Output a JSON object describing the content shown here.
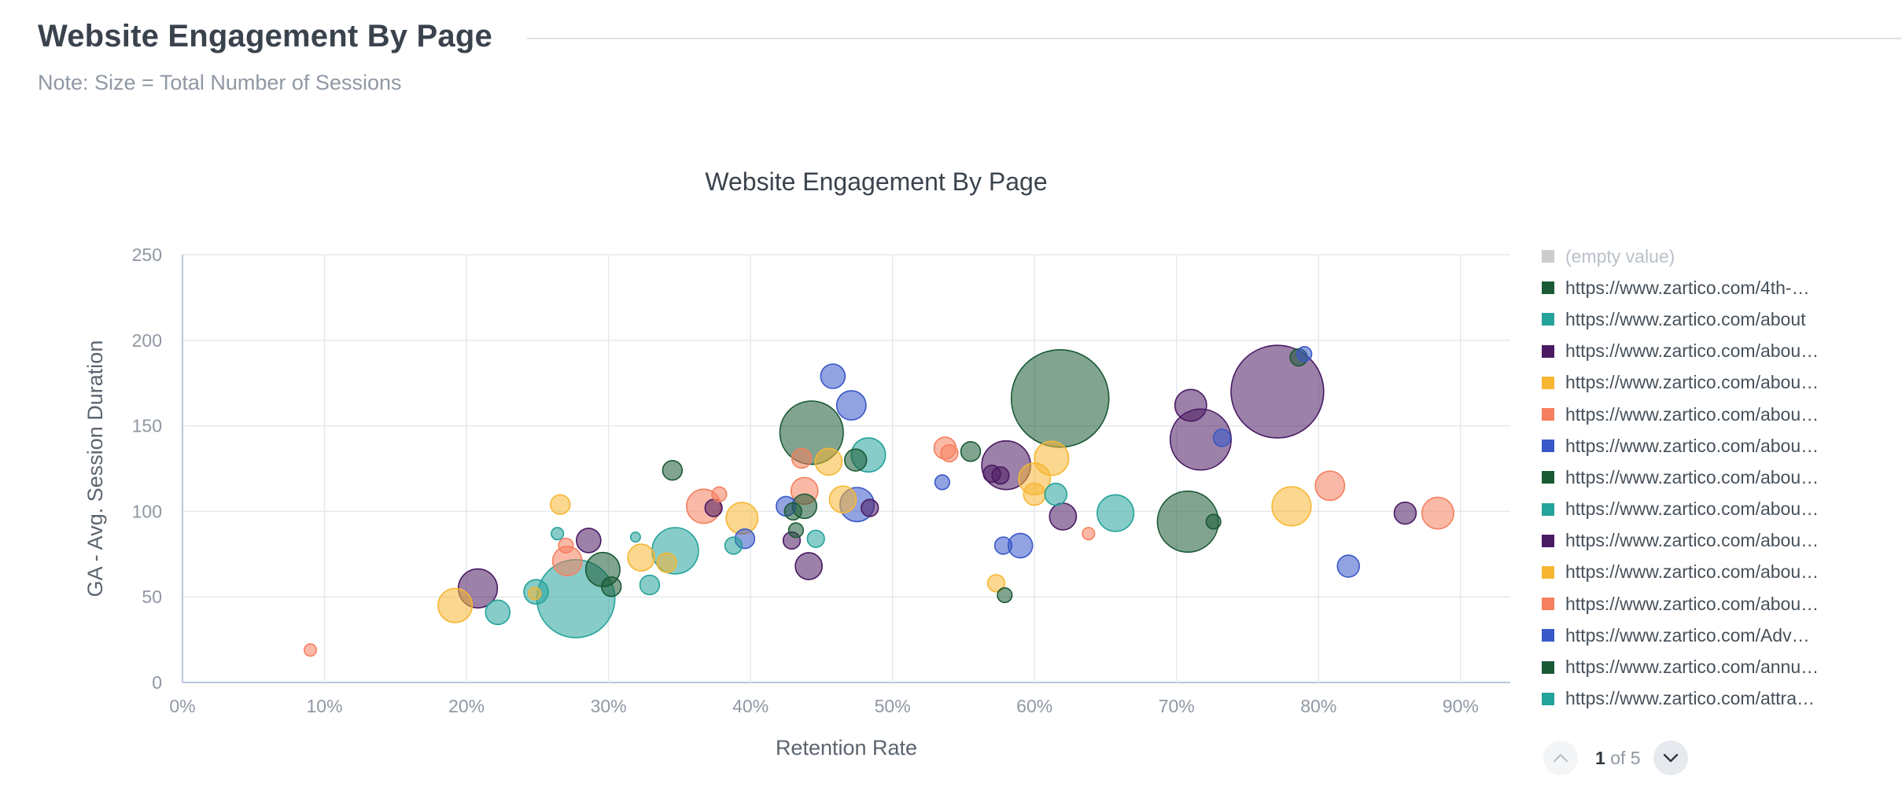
{
  "header": {
    "title": "Website Engagement By Page",
    "note": "Note: Size = Total Number of Sessions"
  },
  "legend": {
    "items": [
      {
        "label": "(empty value)",
        "color": "#cccccc"
      },
      {
        "label": "https://www.zartico.com/4th-…",
        "color": "#1a5a35"
      },
      {
        "label": "https://www.zartico.com/about",
        "color": "#24a39b"
      },
      {
        "label": "https://www.zartico.com/abou…",
        "color": "#4a1a63"
      },
      {
        "label": "https://www.zartico.com/abou…",
        "color": "#f7b733"
      },
      {
        "label": "https://www.zartico.com/abou…",
        "color": "#f57f5e"
      },
      {
        "label": "https://www.zartico.com/abou…",
        "color": "#3958c8"
      },
      {
        "label": "https://www.zartico.com/abou…",
        "color": "#1a5a35"
      },
      {
        "label": "https://www.zartico.com/abou…",
        "color": "#24a39b"
      },
      {
        "label": "https://www.zartico.com/abou…",
        "color": "#4a1a63"
      },
      {
        "label": "https://www.zartico.com/abou…",
        "color": "#f7b733"
      },
      {
        "label": "https://www.zartico.com/abou…",
        "color": "#f57f5e"
      },
      {
        "label": "https://www.zartico.com/Adv…",
        "color": "#3958c8"
      },
      {
        "label": "https://www.zartico.com/annu…",
        "color": "#1a5a35"
      },
      {
        "label": "https://www.zartico.com/attra…",
        "color": "#24a39b"
      }
    ]
  },
  "pager": {
    "current": "1",
    "of_label": "of 5"
  },
  "icons": {
    "prev": "chevron-up-icon",
    "next": "chevron-down-icon"
  },
  "chart_data": {
    "type": "scatter",
    "title": "Website Engagement By Page",
    "xlabel": "Retention Rate",
    "ylabel": "GA - Avg. Session Duration",
    "xlim": [
      0,
      93.5
    ],
    "ylim": [
      0,
      250
    ],
    "xticks": [
      0,
      10,
      20,
      30,
      40,
      50,
      60,
      70,
      80,
      90
    ],
    "xtick_labels": [
      "0%",
      "10%",
      "20%",
      "30%",
      "40%",
      "50%",
      "60%",
      "70%",
      "80%",
      "90%"
    ],
    "yticks": [
      0,
      50,
      100,
      150,
      200,
      250
    ],
    "ytick_labels": [
      "0",
      "50",
      "100",
      "150",
      "200",
      "250"
    ],
    "grid": true,
    "legend_position": "right",
    "size_encoding": "Total Number of Sessions",
    "colors": {
      "green": "#1a5a35",
      "teal": "#24a39b",
      "purple": "#4a1a63",
      "yellow": "#f7b733",
      "orange": "#f57f5e",
      "blue": "#3958c8"
    },
    "points": [
      {
        "x": 9.0,
        "y": 19,
        "size": 5,
        "color": "orange"
      },
      {
        "x": 19.2,
        "y": 45,
        "size": 14,
        "color": "yellow"
      },
      {
        "x": 20.8,
        "y": 55,
        "size": 16,
        "color": "purple"
      },
      {
        "x": 22.2,
        "y": 41,
        "size": 10,
        "color": "teal"
      },
      {
        "x": 24.8,
        "y": 52,
        "size": 5,
        "color": "yellow"
      },
      {
        "x": 24.9,
        "y": 53,
        "size": 10,
        "color": "teal"
      },
      {
        "x": 26.4,
        "y": 87,
        "size": 5,
        "color": "teal"
      },
      {
        "x": 26.6,
        "y": 104,
        "size": 8,
        "color": "yellow"
      },
      {
        "x": 27.0,
        "y": 80,
        "size": 6,
        "color": "orange"
      },
      {
        "x": 27.1,
        "y": 71,
        "size": 12,
        "color": "orange"
      },
      {
        "x": 27.7,
        "y": 49,
        "size": 32,
        "color": "teal"
      },
      {
        "x": 28.6,
        "y": 83,
        "size": 10,
        "color": "purple"
      },
      {
        "x": 29.6,
        "y": 66,
        "size": 14,
        "color": "green"
      },
      {
        "x": 30.2,
        "y": 56,
        "size": 8,
        "color": "green"
      },
      {
        "x": 31.9,
        "y": 85,
        "size": 4,
        "color": "teal"
      },
      {
        "x": 32.3,
        "y": 73,
        "size": 11,
        "color": "yellow"
      },
      {
        "x": 32.9,
        "y": 57,
        "size": 8,
        "color": "teal"
      },
      {
        "x": 34.1,
        "y": 70,
        "size": 8,
        "color": "yellow"
      },
      {
        "x": 34.7,
        "y": 77,
        "size": 19,
        "color": "teal"
      },
      {
        "x": 34.5,
        "y": 124,
        "size": 8,
        "color": "green"
      },
      {
        "x": 36.7,
        "y": 103,
        "size": 14,
        "color": "orange"
      },
      {
        "x": 37.4,
        "y": 102,
        "size": 7,
        "color": "purple"
      },
      {
        "x": 37.8,
        "y": 110,
        "size": 6,
        "color": "orange"
      },
      {
        "x": 38.8,
        "y": 80,
        "size": 7,
        "color": "teal"
      },
      {
        "x": 39.4,
        "y": 96,
        "size": 13,
        "color": "yellow"
      },
      {
        "x": 39.6,
        "y": 84,
        "size": 8,
        "color": "blue"
      },
      {
        "x": 42.5,
        "y": 103,
        "size": 8,
        "color": "blue"
      },
      {
        "x": 42.9,
        "y": 83,
        "size": 7,
        "color": "purple"
      },
      {
        "x": 43.2,
        "y": 89,
        "size": 6,
        "color": "green"
      },
      {
        "x": 43.0,
        "y": 100,
        "size": 7,
        "color": "green"
      },
      {
        "x": 43.6,
        "y": 131,
        "size": 8,
        "color": "orange"
      },
      {
        "x": 43.8,
        "y": 112,
        "size": 11,
        "color": "orange"
      },
      {
        "x": 43.8,
        "y": 103,
        "size": 10,
        "color": "green"
      },
      {
        "x": 44.1,
        "y": 68,
        "size": 11,
        "color": "purple"
      },
      {
        "x": 44.3,
        "y": 146,
        "size": 26,
        "color": "green"
      },
      {
        "x": 44.6,
        "y": 84,
        "size": 7,
        "color": "teal"
      },
      {
        "x": 45.5,
        "y": 129,
        "size": 11,
        "color": "yellow"
      },
      {
        "x": 45.8,
        "y": 179,
        "size": 10,
        "color": "blue"
      },
      {
        "x": 46.5,
        "y": 107,
        "size": 11,
        "color": "yellow"
      },
      {
        "x": 47.1,
        "y": 162,
        "size": 12,
        "color": "blue"
      },
      {
        "x": 47.5,
        "y": 104,
        "size": 14,
        "color": "blue"
      },
      {
        "x": 47.4,
        "y": 130,
        "size": 9,
        "color": "green"
      },
      {
        "x": 48.3,
        "y": 133,
        "size": 14,
        "color": "teal"
      },
      {
        "x": 48.4,
        "y": 102,
        "size": 7,
        "color": "purple"
      },
      {
        "x": 53.5,
        "y": 117,
        "size": 6,
        "color": "blue"
      },
      {
        "x": 53.7,
        "y": 137,
        "size": 9,
        "color": "orange"
      },
      {
        "x": 54.0,
        "y": 134,
        "size": 7,
        "color": "orange"
      },
      {
        "x": 55.5,
        "y": 135,
        "size": 8,
        "color": "green"
      },
      {
        "x": 57.3,
        "y": 58,
        "size": 7,
        "color": "yellow"
      },
      {
        "x": 57.8,
        "y": 80,
        "size": 7,
        "color": "blue"
      },
      {
        "x": 57.9,
        "y": 51,
        "size": 6,
        "color": "green"
      },
      {
        "x": 57.0,
        "y": 122,
        "size": 7,
        "color": "purple"
      },
      {
        "x": 57.6,
        "y": 121,
        "size": 7,
        "color": "purple"
      },
      {
        "x": 58.0,
        "y": 127,
        "size": 20,
        "color": "purple"
      },
      {
        "x": 59.0,
        "y": 80,
        "size": 10,
        "color": "blue"
      },
      {
        "x": 60.0,
        "y": 110,
        "size": 9,
        "color": "yellow"
      },
      {
        "x": 60.0,
        "y": 119,
        "size": 13,
        "color": "yellow"
      },
      {
        "x": 61.2,
        "y": 131,
        "size": 14,
        "color": "yellow"
      },
      {
        "x": 61.5,
        "y": 110,
        "size": 9,
        "color": "teal"
      },
      {
        "x": 61.8,
        "y": 166,
        "size": 40,
        "color": "green"
      },
      {
        "x": 62.0,
        "y": 97,
        "size": 11,
        "color": "purple"
      },
      {
        "x": 63.8,
        "y": 87,
        "size": 5,
        "color": "orange"
      },
      {
        "x": 65.7,
        "y": 99,
        "size": 15,
        "color": "teal"
      },
      {
        "x": 70.8,
        "y": 94,
        "size": 25,
        "color": "green"
      },
      {
        "x": 71.0,
        "y": 162,
        "size": 13,
        "color": "purple"
      },
      {
        "x": 71.7,
        "y": 142,
        "size": 25,
        "color": "purple"
      },
      {
        "x": 72.6,
        "y": 94,
        "size": 6,
        "color": "green"
      },
      {
        "x": 73.2,
        "y": 143,
        "size": 7,
        "color": "blue"
      },
      {
        "x": 77.1,
        "y": 170,
        "size": 38,
        "color": "purple"
      },
      {
        "x": 78.1,
        "y": 103,
        "size": 16,
        "color": "yellow"
      },
      {
        "x": 78.6,
        "y": 190,
        "size": 7,
        "color": "green"
      },
      {
        "x": 79.0,
        "y": 192,
        "size": 6,
        "color": "blue"
      },
      {
        "x": 80.8,
        "y": 115,
        "size": 12,
        "color": "orange"
      },
      {
        "x": 82.1,
        "y": 68,
        "size": 9,
        "color": "blue"
      },
      {
        "x": 86.1,
        "y": 99,
        "size": 9,
        "color": "purple"
      },
      {
        "x": 88.4,
        "y": 99,
        "size": 13,
        "color": "orange"
      }
    ]
  }
}
